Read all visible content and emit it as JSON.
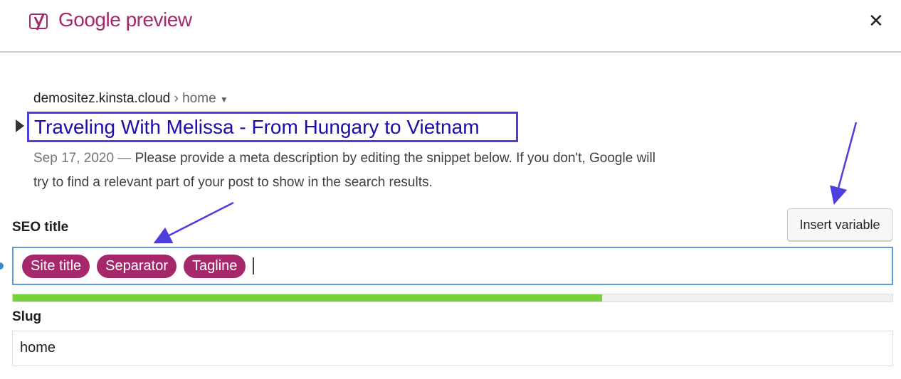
{
  "header": {
    "title": "Google preview",
    "close_icon": "close-icon",
    "logo_icon": "yoast-logo-icon"
  },
  "serp": {
    "url": "demositez.kinsta.cloud",
    "breadcrumb": "› home",
    "title": "Traveling With Melissa - From Hungary to Vietnam",
    "date": "Sep 17, 2020 —",
    "description": "Please provide a meta description by editing the snippet below. If you don't, Google will try to find a relevant part of your post to show in the search results."
  },
  "seo_title": {
    "label": "SEO title",
    "insert_variable": "Insert variable",
    "pills": [
      "Site title",
      "Separator",
      "Tagline"
    ],
    "progress_percent": 67,
    "progress_color": "#7ad03a"
  },
  "slug": {
    "label": "Slug",
    "value": "home"
  },
  "colors": {
    "brand": "#a4286a",
    "annotation": "#4d3ee0",
    "link": "#1a0dab"
  }
}
